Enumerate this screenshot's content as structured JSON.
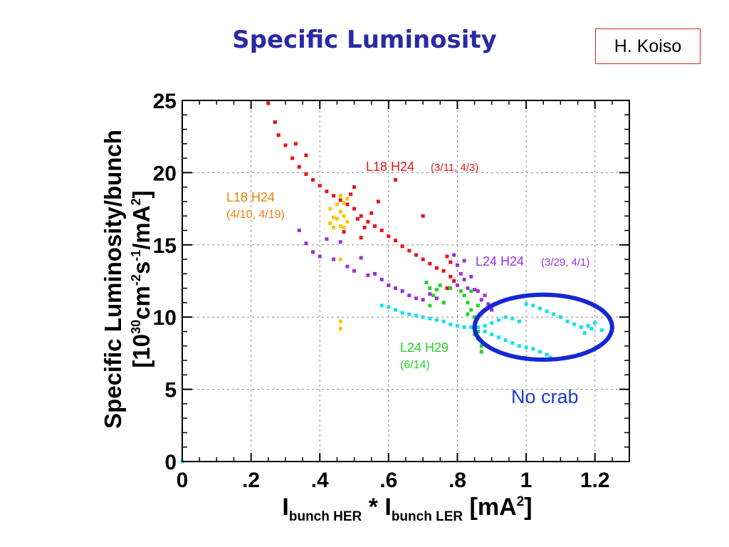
{
  "slide": {
    "title": "Specific Luminosity",
    "author": "H. Koiso"
  },
  "chart_data": {
    "type": "scatter",
    "title": "",
    "xlabel": "Ibunch HER * Ibunch LER [mA2]",
    "ylabel": "Specific Luminosity/bunch [10^30 cm^-2 s^-1/mA^2]",
    "xlim": [
      0,
      1.3
    ],
    "ylim": [
      0,
      25
    ],
    "x_ticks": [
      {
        "value": 0,
        "label": "0"
      },
      {
        "value": 0.2,
        "label": ".2"
      },
      {
        "value": 0.4,
        "label": ".4"
      },
      {
        "value": 0.6,
        "label": ".6"
      },
      {
        "value": 0.8,
        "label": ".8"
      },
      {
        "value": 1.0,
        "label": "1"
      },
      {
        "value": 1.2,
        "label": "1.2"
      }
    ],
    "y_ticks": [
      {
        "value": 0,
        "label": "0"
      },
      {
        "value": 5,
        "label": "5"
      },
      {
        "value": 10,
        "label": "10"
      },
      {
        "value": 15,
        "label": "15"
      },
      {
        "value": 20,
        "label": "20"
      },
      {
        "value": 25,
        "label": "25"
      }
    ],
    "grid": true,
    "series": [
      {
        "name": "L18 H24 (3/11, 4/3)",
        "color": "#e8141a",
        "points": [
          [
            0.25,
            24.8
          ],
          [
            0.27,
            23.5
          ],
          [
            0.28,
            22.6
          ],
          [
            0.3,
            21.9
          ],
          [
            0.32,
            21.0
          ],
          [
            0.34,
            20.4
          ],
          [
            0.36,
            19.9
          ],
          [
            0.38,
            19.5
          ],
          [
            0.4,
            19.1
          ],
          [
            0.42,
            18.7
          ],
          [
            0.44,
            18.4
          ],
          [
            0.46,
            18.1
          ],
          [
            0.48,
            17.8
          ],
          [
            0.5,
            17.5
          ],
          [
            0.52,
            17.0
          ],
          [
            0.54,
            16.6
          ],
          [
            0.56,
            16.3
          ],
          [
            0.58,
            16.0
          ],
          [
            0.6,
            15.6
          ],
          [
            0.62,
            15.3
          ],
          [
            0.64,
            14.9
          ],
          [
            0.66,
            14.6
          ],
          [
            0.68,
            14.3
          ],
          [
            0.7,
            14.0
          ],
          [
            0.72,
            13.7
          ],
          [
            0.74,
            13.4
          ],
          [
            0.76,
            13.2
          ],
          [
            0.78,
            12.8
          ],
          [
            0.49,
            18.5
          ],
          [
            0.51,
            16.8
          ],
          [
            0.53,
            16.2
          ],
          [
            0.55,
            17.2
          ],
          [
            0.57,
            18.0
          ],
          [
            0.5,
            19.0
          ],
          [
            0.47,
            15.9
          ],
          [
            0.52,
            15.5
          ],
          [
            0.77,
            12.0
          ],
          [
            0.78,
            13.8
          ],
          [
            0.79,
            12.5
          ],
          [
            0.77,
            14.2
          ],
          [
            0.33,
            22.0
          ],
          [
            0.36,
            21.2
          ],
          [
            0.62,
            19.5
          ],
          [
            0.7,
            17.0
          ]
        ]
      },
      {
        "name": "L18 H24 (4/10, 4/19)",
        "color": "#f7c600",
        "points": [
          [
            0.43,
            17.5
          ],
          [
            0.43,
            16.5
          ],
          [
            0.44,
            16.9
          ],
          [
            0.44,
            16.2
          ],
          [
            0.45,
            17.8
          ],
          [
            0.45,
            16.8
          ],
          [
            0.46,
            18.4
          ],
          [
            0.46,
            17.3
          ],
          [
            0.46,
            16.3
          ],
          [
            0.47,
            17.9
          ],
          [
            0.47,
            17.0
          ],
          [
            0.47,
            16.2
          ],
          [
            0.48,
            18.2
          ],
          [
            0.48,
            16.6
          ],
          [
            0.46,
            14.0
          ],
          [
            0.46,
            9.7
          ],
          [
            0.46,
            9.2
          ]
        ]
      },
      {
        "name": "L24 H24 (3/29, 4/1)",
        "color": "#9b2fdc",
        "points": [
          [
            0.34,
            16.0
          ],
          [
            0.36,
            15.1
          ],
          [
            0.38,
            14.5
          ],
          [
            0.4,
            14.2
          ],
          [
            0.42,
            15.4
          ],
          [
            0.44,
            14.0
          ],
          [
            0.46,
            15.2
          ],
          [
            0.48,
            13.5
          ],
          [
            0.5,
            13.2
          ],
          [
            0.52,
            14.1
          ],
          [
            0.54,
            12.9
          ],
          [
            0.56,
            13.0
          ],
          [
            0.58,
            12.6
          ],
          [
            0.6,
            12.2
          ],
          [
            0.62,
            12.0
          ],
          [
            0.64,
            11.8
          ],
          [
            0.66,
            11.5
          ],
          [
            0.68,
            11.3
          ],
          [
            0.7,
            11.2
          ],
          [
            0.72,
            11.6
          ],
          [
            0.74,
            11.3
          ],
          [
            0.76,
            11.0
          ],
          [
            0.79,
            14.3
          ],
          [
            0.8,
            13.6
          ],
          [
            0.81,
            13.0
          ],
          [
            0.8,
            12.2
          ],
          [
            0.82,
            13.9
          ],
          [
            0.82,
            12.6
          ],
          [
            0.83,
            12.0
          ],
          [
            0.84,
            12.8
          ],
          [
            0.85,
            11.9
          ],
          [
            0.86,
            11.8
          ],
          [
            0.87,
            11.2
          ],
          [
            0.88,
            11.5
          ],
          [
            0.89,
            10.9
          ],
          [
            0.9,
            10.5
          ]
        ]
      },
      {
        "name": "L24 H29 (6/14)",
        "color": "#22d422",
        "points": [
          [
            0.71,
            12.4
          ],
          [
            0.72,
            12.0
          ],
          [
            0.73,
            11.5
          ],
          [
            0.74,
            11.9
          ],
          [
            0.75,
            12.2
          ],
          [
            0.72,
            10.8
          ],
          [
            0.76,
            11.0
          ],
          [
            0.78,
            12.0
          ],
          [
            0.81,
            11.8
          ],
          [
            0.82,
            11.5
          ],
          [
            0.83,
            11.0
          ],
          [
            0.84,
            10.5
          ],
          [
            0.85,
            10.0
          ],
          [
            0.85,
            9.5
          ],
          [
            0.86,
            9.0
          ],
          [
            0.86,
            8.5
          ],
          [
            0.87,
            8.0
          ],
          [
            0.87,
            7.6
          ],
          [
            0.84,
            11.8
          ],
          [
            0.83,
            10.2
          ],
          [
            0.86,
            10.8
          ],
          [
            0.85,
            8.8
          ]
        ]
      },
      {
        "name": "No crab",
        "color": "#14e0ec",
        "points": [
          [
            0.58,
            10.8
          ],
          [
            0.6,
            10.7
          ],
          [
            0.62,
            10.5
          ],
          [
            0.64,
            10.3
          ],
          [
            0.66,
            10.2
          ],
          [
            0.68,
            10.1
          ],
          [
            0.7,
            10.0
          ],
          [
            0.72,
            9.9
          ],
          [
            0.74,
            9.8
          ],
          [
            0.76,
            9.7
          ],
          [
            0.78,
            9.5
          ],
          [
            0.8,
            9.4
          ],
          [
            0.82,
            9.3
          ],
          [
            0.84,
            9.3
          ],
          [
            0.86,
            9.3
          ],
          [
            0.88,
            9.4
          ],
          [
            0.9,
            9.6
          ],
          [
            0.92,
            9.8
          ],
          [
            0.94,
            10.0
          ],
          [
            0.96,
            9.9
          ],
          [
            0.98,
            9.7
          ],
          [
            1.0,
            10.9
          ],
          [
            1.02,
            10.8
          ],
          [
            1.04,
            10.6
          ],
          [
            1.06,
            10.4
          ],
          [
            1.08,
            10.2
          ],
          [
            1.1,
            10.0
          ],
          [
            1.12,
            9.7
          ],
          [
            1.14,
            9.5
          ],
          [
            1.16,
            9.3
          ],
          [
            1.18,
            9.4
          ],
          [
            1.2,
            9.6
          ],
          [
            1.22,
            9.1
          ],
          [
            1.17,
            8.9
          ],
          [
            1.19,
            9.2
          ],
          [
            0.88,
            9.0
          ],
          [
            0.9,
            8.8
          ],
          [
            0.92,
            8.6
          ],
          [
            0.94,
            8.4
          ],
          [
            0.96,
            8.2
          ],
          [
            0.98,
            8.0
          ],
          [
            1.0,
            7.9
          ],
          [
            1.02,
            7.8
          ],
          [
            1.04,
            7.6
          ],
          [
            1.06,
            7.4
          ],
          [
            1.07,
            7.2
          ],
          [
            0.0,
            0.0
          ]
        ]
      }
    ],
    "annotations": [
      {
        "text": "L18 H24",
        "subtext": "(3/11, 4/3)",
        "color": "#e8141a"
      },
      {
        "text": "L18 H24",
        "subtext": "(4/10, 4/19)",
        "color": "#f08000"
      },
      {
        "text": "L24 H24",
        "subtext": "(3/29, 4/1)",
        "color": "#9b2fdc"
      },
      {
        "text": "L24 H29",
        "subtext": "(6/14)",
        "color": "#22d422"
      },
      {
        "text": "No crab",
        "subtext": "",
        "color": "#1c3ad0"
      }
    ],
    "highlight": {
      "type": "ellipse",
      "color": "#1428d4",
      "cx": 1.05,
      "cy": 9.3,
      "rx": 0.2,
      "ry": 2.25
    }
  }
}
